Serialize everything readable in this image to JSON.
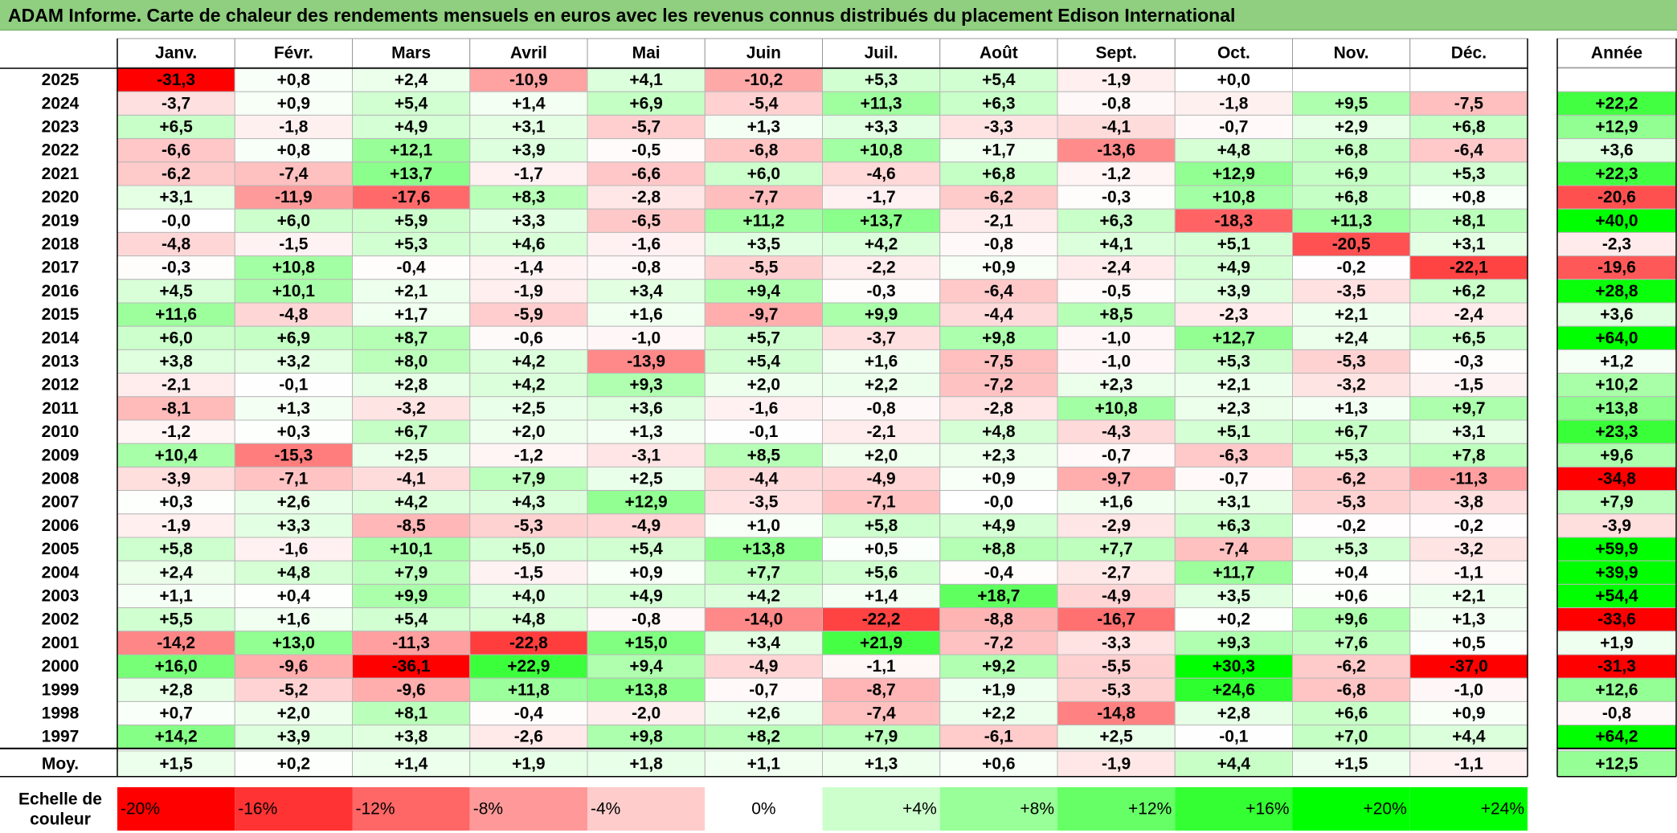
{
  "title": "ADAM Informe. Carte de chaleur des rendements mensuels en euros avec les revenus connus distribués du placement Edison International",
  "chart_data": {
    "type": "heatmap",
    "months": [
      "Janv.",
      "Févr.",
      "Mars",
      "Avril",
      "Mai",
      "Juin",
      "Juil.",
      "Août",
      "Sept.",
      "Oct.",
      "Nov.",
      "Déc."
    ],
    "annual_header": "Année",
    "rows": [
      {
        "year": "2025",
        "values": [
          "-31,3",
          "+0,8",
          "+2,4",
          "-10,9",
          "+4,1",
          "-10,2",
          "+5,3",
          "+5,4",
          "-1,9",
          "+0,0",
          "",
          ""
        ],
        "annual": ""
      },
      {
        "year": "2024",
        "values": [
          "-3,7",
          "+0,9",
          "+5,4",
          "+1,4",
          "+6,9",
          "-5,4",
          "+11,3",
          "+6,3",
          "-0,8",
          "-1,8",
          "+9,5",
          "-7,5"
        ],
        "annual": "+22,2"
      },
      {
        "year": "2023",
        "values": [
          "+6,5",
          "-1,8",
          "+4,9",
          "+3,1",
          "-5,7",
          "+1,3",
          "+3,3",
          "-3,3",
          "-4,1",
          "-0,7",
          "+2,9",
          "+6,8"
        ],
        "annual": "+12,9"
      },
      {
        "year": "2022",
        "values": [
          "-6,6",
          "+0,8",
          "+12,1",
          "+3,9",
          "-0,5",
          "-6,8",
          "+10,8",
          "+1,7",
          "-13,6",
          "+4,8",
          "+6,8",
          "-6,4"
        ],
        "annual": "+3,6"
      },
      {
        "year": "2021",
        "values": [
          "-6,2",
          "-7,4",
          "+13,7",
          "-1,7",
          "-6,6",
          "+6,0",
          "-4,6",
          "+6,8",
          "-1,2",
          "+12,9",
          "+6,9",
          "+5,3"
        ],
        "annual": "+22,3"
      },
      {
        "year": "2020",
        "values": [
          "+3,1",
          "-11,9",
          "-17,6",
          "+8,3",
          "-2,8",
          "-7,7",
          "-1,7",
          "-6,2",
          "-0,3",
          "+10,8",
          "+6,8",
          "+0,8"
        ],
        "annual": "-20,6"
      },
      {
        "year": "2019",
        "values": [
          "-0,0",
          "+6,0",
          "+5,9",
          "+3,3",
          "-6,5",
          "+11,2",
          "+13,7",
          "-2,1",
          "+6,3",
          "-18,3",
          "+11,3",
          "+8,1"
        ],
        "annual": "+40,0"
      },
      {
        "year": "2018",
        "values": [
          "-4,8",
          "-1,5",
          "+5,3",
          "+4,6",
          "-1,6",
          "+3,5",
          "+4,2",
          "-0,8",
          "+4,1",
          "+5,1",
          "-20,5",
          "+3,1"
        ],
        "annual": "-2,3"
      },
      {
        "year": "2017",
        "values": [
          "-0,3",
          "+10,8",
          "-0,4",
          "-1,4",
          "-0,8",
          "-5,5",
          "-2,2",
          "+0,9",
          "-2,4",
          "+4,9",
          "-0,2",
          "-22,1"
        ],
        "annual": "-19,6"
      },
      {
        "year": "2016",
        "values": [
          "+4,5",
          "+10,1",
          "+2,1",
          "-1,9",
          "+3,4",
          "+9,4",
          "-0,3",
          "-6,4",
          "-0,5",
          "+3,9",
          "-3,5",
          "+6,2"
        ],
        "annual": "+28,8"
      },
      {
        "year": "2015",
        "values": [
          "+11,6",
          "-4,8",
          "+1,7",
          "-5,9",
          "+1,6",
          "-9,7",
          "+9,9",
          "-4,4",
          "+8,5",
          "-2,3",
          "+2,1",
          "-2,4"
        ],
        "annual": "+3,6"
      },
      {
        "year": "2014",
        "values": [
          "+6,0",
          "+6,9",
          "+8,7",
          "-0,6",
          "-1,0",
          "+5,7",
          "-3,7",
          "+9,8",
          "-1,0",
          "+12,7",
          "+2,4",
          "+6,5"
        ],
        "annual": "+64,0"
      },
      {
        "year": "2013",
        "values": [
          "+3,8",
          "+3,2",
          "+8,0",
          "+4,2",
          "-13,9",
          "+5,4",
          "+1,6",
          "-7,5",
          "-1,0",
          "+5,3",
          "-5,3",
          "-0,3"
        ],
        "annual": "+1,2"
      },
      {
        "year": "2012",
        "values": [
          "-2,1",
          "-0,1",
          "+2,8",
          "+4,2",
          "+9,3",
          "+2,0",
          "+2,2",
          "-7,2",
          "+2,3",
          "+2,1",
          "-3,2",
          "-1,5"
        ],
        "annual": "+10,2"
      },
      {
        "year": "2011",
        "values": [
          "-8,1",
          "+1,3",
          "-3,2",
          "+2,5",
          "+3,6",
          "-1,6",
          "-0,8",
          "-2,8",
          "+10,8",
          "+2,3",
          "+1,3",
          "+9,7"
        ],
        "annual": "+13,8"
      },
      {
        "year": "2010",
        "values": [
          "-1,2",
          "+0,3",
          "+6,7",
          "+2,0",
          "+1,3",
          "-0,1",
          "-2,1",
          "+4,8",
          "-4,3",
          "+5,1",
          "+6,7",
          "+3,1"
        ],
        "annual": "+23,3"
      },
      {
        "year": "2009",
        "values": [
          "+10,4",
          "-15,3",
          "+2,5",
          "-1,2",
          "-3,1",
          "+8,5",
          "+2,0",
          "+2,3",
          "-0,7",
          "-6,3",
          "+5,3",
          "+7,8"
        ],
        "annual": "+9,6"
      },
      {
        "year": "2008",
        "values": [
          "-3,9",
          "-7,1",
          "-4,1",
          "+7,9",
          "+2,5",
          "-4,4",
          "-4,9",
          "+0,9",
          "-9,7",
          "-0,7",
          "-6,2",
          "-11,3"
        ],
        "annual": "-34,8"
      },
      {
        "year": "2007",
        "values": [
          "+0,3",
          "+2,6",
          "+4,2",
          "+4,3",
          "+12,9",
          "-3,5",
          "-7,1",
          "-0,0",
          "+1,6",
          "+3,1",
          "-5,3",
          "-3,8"
        ],
        "annual": "+7,9"
      },
      {
        "year": "2006",
        "values": [
          "-1,9",
          "+3,3",
          "-8,5",
          "-5,3",
          "-4,9",
          "+1,0",
          "+5,8",
          "+4,9",
          "-2,9",
          "+6,3",
          "-0,2",
          "-0,2"
        ],
        "annual": "-3,9"
      },
      {
        "year": "2005",
        "values": [
          "+5,8",
          "-1,6",
          "+10,1",
          "+5,0",
          "+5,4",
          "+13,8",
          "+0,5",
          "+8,8",
          "+7,7",
          "-7,4",
          "+5,3",
          "-3,2"
        ],
        "annual": "+59,9"
      },
      {
        "year": "2004",
        "values": [
          "+2,4",
          "+4,8",
          "+7,9",
          "-1,5",
          "+0,9",
          "+7,7",
          "+5,6",
          "-0,4",
          "-2,7",
          "+11,7",
          "+0,4",
          "-1,1"
        ],
        "annual": "+39,9"
      },
      {
        "year": "2003",
        "values": [
          "+1,1",
          "+0,4",
          "+9,9",
          "+4,0",
          "+4,9",
          "+4,2",
          "+1,4",
          "+18,7",
          "-4,9",
          "+3,5",
          "+0,6",
          "+2,1"
        ],
        "annual": "+54,4"
      },
      {
        "year": "2002",
        "values": [
          "+5,5",
          "+1,6",
          "+5,4",
          "+4,8",
          "-0,8",
          "-14,0",
          "-22,2",
          "-8,8",
          "-16,7",
          "+0,2",
          "+9,6",
          "+1,3"
        ],
        "annual": "-33,6"
      },
      {
        "year": "2001",
        "values": [
          "-14,2",
          "+13,0",
          "-11,3",
          "-22,8",
          "+15,0",
          "+3,4",
          "+21,9",
          "-7,2",
          "-3,3",
          "+9,3",
          "+7,6",
          "+0,5"
        ],
        "annual": "+1,9"
      },
      {
        "year": "2000",
        "values": [
          "+16,0",
          "-9,6",
          "-36,1",
          "+22,9",
          "+9,4",
          "-4,9",
          "-1,1",
          "+9,2",
          "-5,5",
          "+30,3",
          "-6,2",
          "-37,0"
        ],
        "annual": "-31,3"
      },
      {
        "year": "1999",
        "values": [
          "+2,8",
          "-5,2",
          "-9,6",
          "+11,8",
          "+13,8",
          "-0,7",
          "-8,7",
          "+1,9",
          "-5,3",
          "+24,6",
          "-6,8",
          "-1,0"
        ],
        "annual": "+12,6"
      },
      {
        "year": "1998",
        "values": [
          "+0,7",
          "+2,0",
          "+8,1",
          "-0,4",
          "-2,0",
          "+2,6",
          "-7,4",
          "+2,2",
          "-14,8",
          "+2,8",
          "+6,6",
          "+0,9"
        ],
        "annual": "-0,8"
      },
      {
        "year": "1997",
        "values": [
          "+14,2",
          "+3,9",
          "+3,8",
          "-2,6",
          "+9,8",
          "+8,2",
          "+7,9",
          "-6,1",
          "+2,5",
          "-0,1",
          "+7,0",
          "+4,4"
        ],
        "annual": "+64,2"
      }
    ],
    "average": {
      "label": "Moy.",
      "values": [
        "+1,5",
        "+0,2",
        "+1,4",
        "+1,9",
        "+1,8",
        "+1,1",
        "+1,3",
        "+0,6",
        "-1,9",
        "+4,4",
        "+1,5",
        "-1,1"
      ],
      "annual": "+12,5"
    },
    "scale": {
      "label_line1": "Echelle de",
      "label_line2": "couleur",
      "items": [
        "-20%",
        "-16%",
        "-12%",
        "-8%",
        "-4%",
        "0%",
        "+4%",
        "+8%",
        "+12%",
        "+16%",
        "+20%",
        "+24%"
      ]
    },
    "colors": {
      "title_bg": "#8fcf7f",
      "neg_max": "#ff0000",
      "pos_max": "#00ff00",
      "neutral": "#ffffff"
    }
  }
}
